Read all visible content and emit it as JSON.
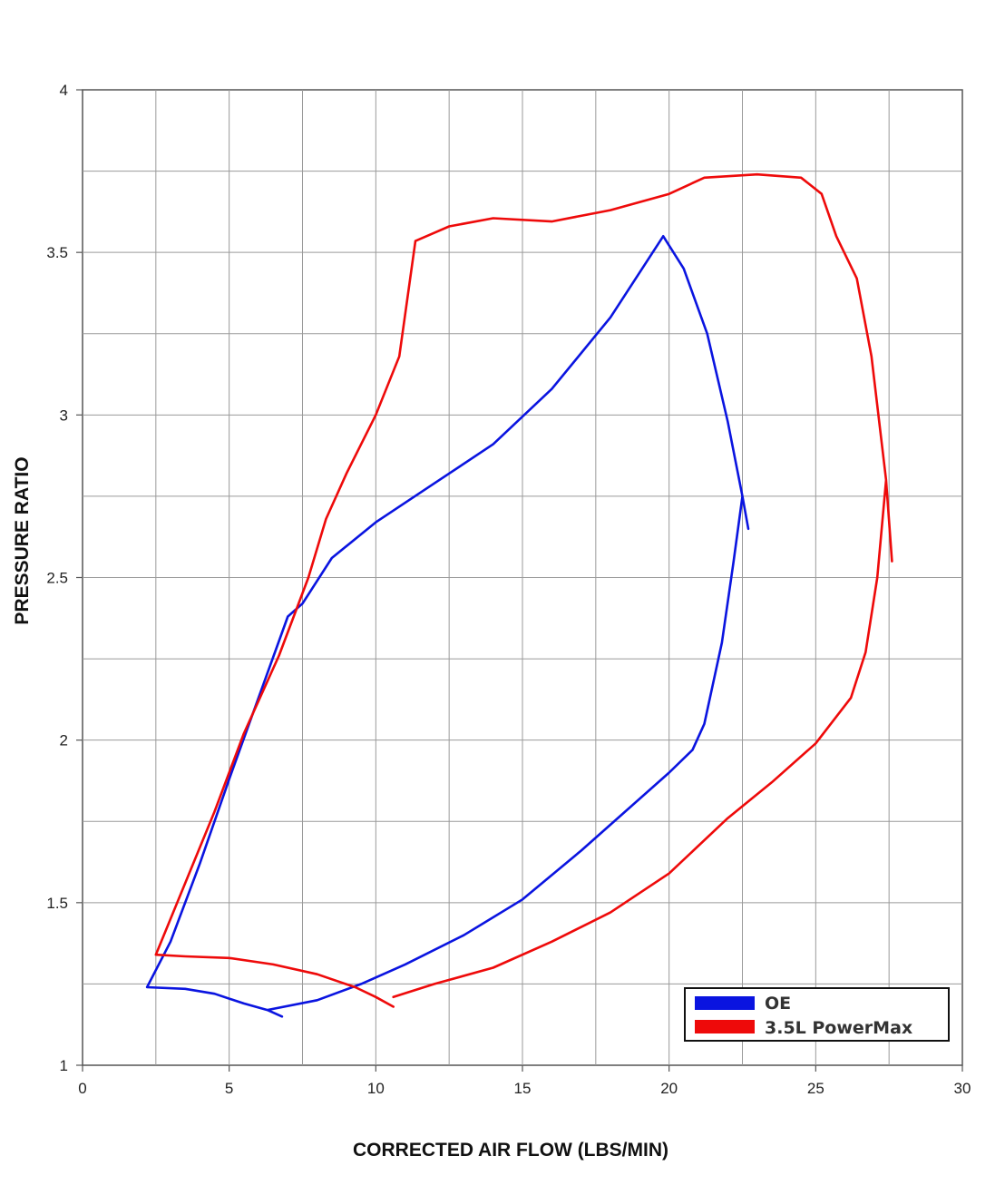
{
  "chart_data": {
    "type": "line",
    "title": "",
    "xlabel": "CORRECTED AIR FLOW (LBS/MIN)",
    "ylabel": "PRESSURE RATIO",
    "xlim": [
      0,
      30
    ],
    "ylim": [
      1,
      4
    ],
    "xticks": [
      "0",
      "5",
      "10",
      "15",
      "20",
      "25",
      "30"
    ],
    "yticks": [
      "1",
      "1.5",
      "2",
      "2.5",
      "3",
      "3.5",
      "4"
    ],
    "grid": true,
    "legend_position": "bottom-right",
    "series": [
      {
        "name": "OE",
        "color": "#0a14e0",
        "points": [
          [
            6.8,
            1.15
          ],
          [
            6.3,
            1.17
          ],
          [
            5.5,
            1.19
          ],
          [
            4.5,
            1.22
          ],
          [
            3.5,
            1.235
          ],
          [
            2.2,
            1.24
          ],
          [
            3.0,
            1.38
          ],
          [
            4.0,
            1.62
          ],
          [
            5.0,
            1.88
          ],
          [
            6.0,
            2.13
          ],
          [
            7.0,
            2.38
          ],
          [
            7.5,
            2.42
          ],
          [
            8.5,
            2.56
          ],
          [
            10.0,
            2.67
          ],
          [
            12.0,
            2.79
          ],
          [
            14.0,
            2.91
          ],
          [
            16.0,
            3.08
          ],
          [
            18.0,
            3.3
          ],
          [
            19.8,
            3.55
          ],
          [
            20.5,
            3.45
          ],
          [
            21.3,
            3.25
          ],
          [
            22.0,
            2.98
          ],
          [
            22.5,
            2.75
          ],
          [
            22.7,
            2.65
          ],
          [
            22.5,
            2.75
          ],
          [
            22.2,
            2.55
          ],
          [
            21.8,
            2.3
          ],
          [
            21.2,
            2.05
          ],
          [
            20.8,
            1.97
          ],
          [
            20.0,
            1.9
          ],
          [
            18.5,
            1.78
          ],
          [
            17.0,
            1.66
          ],
          [
            15.0,
            1.51
          ],
          [
            13.0,
            1.4
          ],
          [
            11.0,
            1.31
          ],
          [
            9.5,
            1.25
          ],
          [
            8.0,
            1.2
          ],
          [
            6.3,
            1.17
          ]
        ]
      },
      {
        "name": "3.5L PowerMax",
        "color": "#ee0a0a",
        "points": [
          [
            10.6,
            1.18
          ],
          [
            10.0,
            1.21
          ],
          [
            9.3,
            1.24
          ],
          [
            8.0,
            1.28
          ],
          [
            6.5,
            1.31
          ],
          [
            5.0,
            1.33
          ],
          [
            3.5,
            1.335
          ],
          [
            2.5,
            1.34
          ],
          [
            3.5,
            1.56
          ],
          [
            4.5,
            1.78
          ],
          [
            5.5,
            2.02
          ],
          [
            6.7,
            2.26
          ],
          [
            7.7,
            2.5
          ],
          [
            8.3,
            2.68
          ],
          [
            9.0,
            2.82
          ],
          [
            10.0,
            3.0
          ],
          [
            10.8,
            3.18
          ],
          [
            11.35,
            3.535
          ],
          [
            12.5,
            3.58
          ],
          [
            14.0,
            3.605
          ],
          [
            16.0,
            3.595
          ],
          [
            18.0,
            3.63
          ],
          [
            20.0,
            3.68
          ],
          [
            21.2,
            3.73
          ],
          [
            23.0,
            3.74
          ],
          [
            24.5,
            3.73
          ],
          [
            25.2,
            3.68
          ],
          [
            25.7,
            3.55
          ],
          [
            26.4,
            3.42
          ],
          [
            26.9,
            3.18
          ],
          [
            27.4,
            2.8
          ],
          [
            27.6,
            2.55
          ],
          [
            27.4,
            2.8
          ],
          [
            27.1,
            2.5
          ],
          [
            26.7,
            2.27
          ],
          [
            26.2,
            2.13
          ],
          [
            25.0,
            1.99
          ],
          [
            23.5,
            1.87
          ],
          [
            22.0,
            1.76
          ],
          [
            20.0,
            1.59
          ],
          [
            18.0,
            1.47
          ],
          [
            16.0,
            1.38
          ],
          [
            14.0,
            1.3
          ],
          [
            12.0,
            1.25
          ],
          [
            10.6,
            1.21
          ]
        ]
      }
    ]
  }
}
